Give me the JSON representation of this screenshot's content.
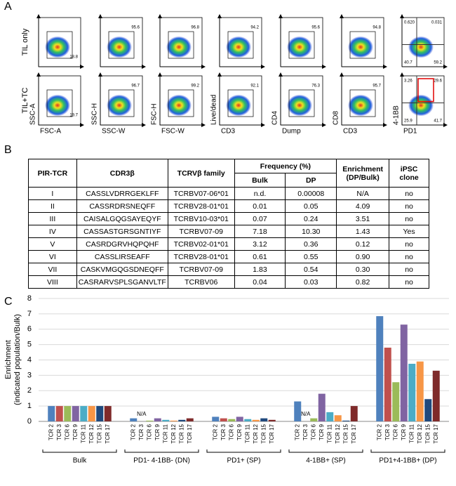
{
  "panel_labels": [
    "A",
    "B",
    "C"
  ],
  "panel_a": {
    "rows": [
      {
        "label": "TIL only",
        "gates": [
          [
            "18.8"
          ],
          [
            "95.6"
          ],
          [
            "96.8"
          ],
          [
            "94.2"
          ],
          [
            "95.6"
          ],
          [
            "94.8"
          ],
          [
            "0.620",
            "0.031",
            "40.7",
            "59.2"
          ]
        ]
      },
      {
        "label": "TIL+TC",
        "gates": [
          [
            "19.7"
          ],
          [
            "96.7"
          ],
          [
            "99.2"
          ],
          [
            "92.1"
          ],
          [
            "76.3"
          ],
          [
            "95.7"
          ],
          [
            "3.26",
            "29.6",
            "25.9",
            "41.7"
          ]
        ]
      }
    ],
    "x_labels": [
      "FSC-A",
      "SSC-W",
      "FSC-W",
      "CD3",
      "Dump",
      "CD3",
      "PD1"
    ],
    "y_labels": [
      "SSC-A",
      "SSC-H",
      "FSC-H",
      "Live/dead",
      "CD4",
      "CD8",
      "4-1BB"
    ]
  },
  "table": {
    "header": [
      "PIR-TCR",
      "CDR3β",
      "TCRVβ family",
      "Frequency (%)",
      "Enrichment (DP/Bulk)",
      "iPSC clone"
    ],
    "subheader": [
      "Bulk",
      "DP"
    ],
    "rows": [
      [
        "I",
        "CASSLVDRRGEKLFF",
        "TCRBV07-06*01",
        "n.d.",
        "0.00008",
        "N/A",
        "no"
      ],
      [
        "II",
        "CASSRDRSNEQFF",
        "TCRBV28-01*01",
        "0.01",
        "0.05",
        "4.09",
        "no"
      ],
      [
        "III",
        "CAISALGQGSAYEQYF",
        "TCRBV10-03*01",
        "0.07",
        "0.24",
        "3.51",
        "no"
      ],
      [
        "IV",
        "CASSASTGRSGNTIYF",
        "TCRBV07-09",
        "7.18",
        "10.30",
        "1.43",
        "Yes"
      ],
      [
        "V",
        "CASRDGRVHQPQHF",
        "TCRBV02-01*01",
        "3.12",
        "0.36",
        "0.12",
        "no"
      ],
      [
        "VI",
        "CASSLIRSEAFF",
        "TCRBV28-01*01",
        "0.61",
        "0.55",
        "0.90",
        "no"
      ],
      [
        "VII",
        "CASKVMGQGSDNEQFF",
        "TCRBV07-09",
        "1.83",
        "0.54",
        "0.30",
        "no"
      ],
      [
        "VIII",
        "CASRARVSPLSGANVLTF",
        "TCRBV06",
        "0.04",
        "0.03",
        "0.82",
        "no"
      ]
    ]
  },
  "chart_data": {
    "type": "bar",
    "ylabel": [
      "Enrichment",
      "(indicated population/Bulk)"
    ],
    "categories": [
      "Bulk",
      "PD1- 4-1BB- (DN)",
      "PD1+ (SP)",
      "4-1BB+ (SP)",
      "PD1+4-1BB+ (DP)"
    ],
    "missing_label": "N/A",
    "series": [
      {
        "name": "TCR 2",
        "color": "#4f81bd",
        "values": [
          1,
          0.2,
          0.3,
          1.3,
          6.85
        ]
      },
      {
        "name": "TCR 3",
        "color": "#c0504d",
        "values": [
          1,
          null,
          0.2,
          null,
          4.8
        ]
      },
      {
        "name": "TCR 6",
        "color": "#9bbb59",
        "values": [
          1,
          0.05,
          0.15,
          0.2,
          2.55
        ]
      },
      {
        "name": "TCR 9",
        "color": "#8064a2",
        "values": [
          1,
          0.2,
          0.3,
          1.8,
          6.3
        ]
      },
      {
        "name": "TCR 11",
        "color": "#4bacc6",
        "values": [
          1,
          0.1,
          0.15,
          0.6,
          3.75
        ]
      },
      {
        "name": "TCR 12",
        "color": "#f79646",
        "values": [
          1,
          0.05,
          0.1,
          0.4,
          3.9
        ]
      },
      {
        "name": "TCR 15",
        "color": "#1f497d",
        "values": [
          1,
          0.1,
          0.2,
          0.05,
          1.45
        ]
      },
      {
        "name": "TCR 17",
        "color": "#7f2a2a",
        "values": [
          1,
          0.2,
          0.1,
          1.0,
          3.3
        ]
      }
    ],
    "ylim": [
      0,
      8
    ],
    "yticks": [
      0,
      1,
      2,
      3,
      4,
      5,
      6,
      7,
      8
    ],
    "grid": true
  }
}
